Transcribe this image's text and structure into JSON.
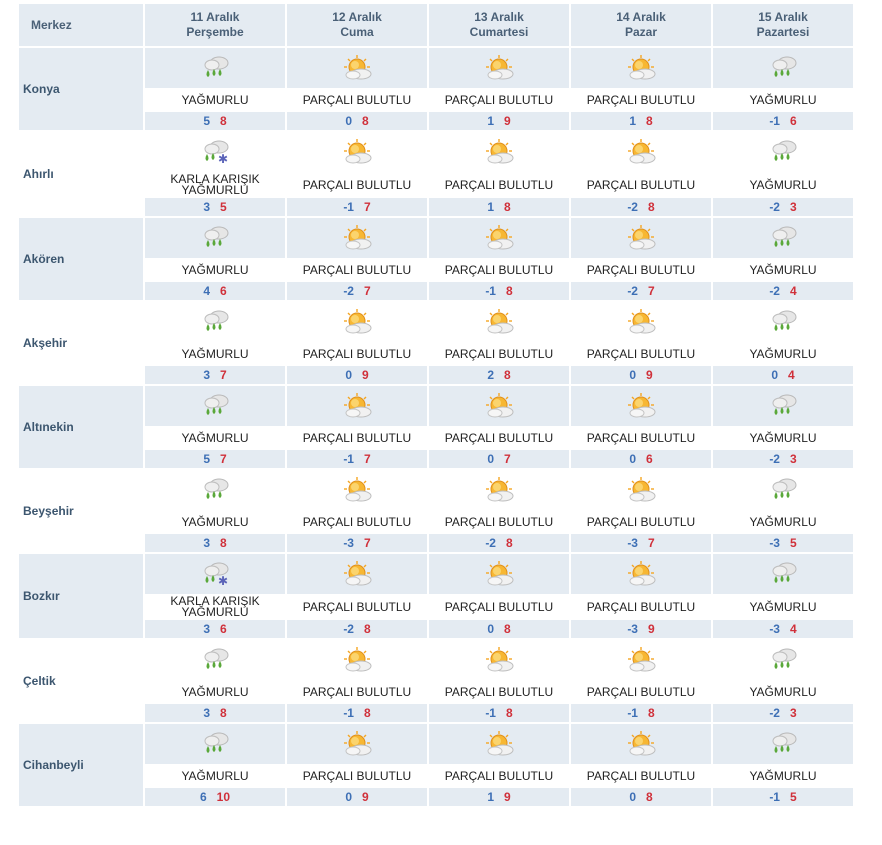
{
  "header": {
    "city_label": "Merkez",
    "days": [
      {
        "date": "11 Aralık",
        "weekday": "Perşembe"
      },
      {
        "date": "12 Aralık",
        "weekday": "Cuma"
      },
      {
        "date": "13 Aralık",
        "weekday": "Cumartesi"
      },
      {
        "date": "14 Aralık",
        "weekday": "Pazar"
      },
      {
        "date": "15 Aralık",
        "weekday": "Pazartesi"
      }
    ]
  },
  "icon_names": {
    "rain": "rain-cloud-icon",
    "partly": "partly-cloudy-sun-icon",
    "sleet": "sleet-cloud-icon"
  },
  "colors": {
    "header_bg": "#e4ebf2",
    "min_temp": "#3d6fb5",
    "max_temp": "#d0303a",
    "rain_drop": "#5aa83a",
    "sun": "#f5a623"
  },
  "cities": [
    {
      "name": "Konya",
      "days": [
        {
          "icon": "rain",
          "cond": "YAĞMURLU",
          "min": "5",
          "max": "8"
        },
        {
          "icon": "partly",
          "cond": "PARÇALI BULUTLU",
          "min": "0",
          "max": "8"
        },
        {
          "icon": "partly",
          "cond": "PARÇALI BULUTLU",
          "min": "1",
          "max": "9"
        },
        {
          "icon": "partly",
          "cond": "PARÇALI BULUTLU",
          "min": "1",
          "max": "8"
        },
        {
          "icon": "rain",
          "cond": "YAĞMURLU",
          "min": "-1",
          "max": "6"
        }
      ]
    },
    {
      "name": "Ahırlı",
      "days": [
        {
          "icon": "sleet",
          "cond": "KARLA KARIŞIK YAĞMURLU",
          "min": "3",
          "max": "5"
        },
        {
          "icon": "partly",
          "cond": "PARÇALI BULUTLU",
          "min": "-1",
          "max": "7"
        },
        {
          "icon": "partly",
          "cond": "PARÇALI BULUTLU",
          "min": "1",
          "max": "8"
        },
        {
          "icon": "partly",
          "cond": "PARÇALI BULUTLU",
          "min": "-2",
          "max": "8"
        },
        {
          "icon": "rain",
          "cond": "YAĞMURLU",
          "min": "-2",
          "max": "3"
        }
      ]
    },
    {
      "name": "Akören",
      "days": [
        {
          "icon": "rain",
          "cond": "YAĞMURLU",
          "min": "4",
          "max": "6"
        },
        {
          "icon": "partly",
          "cond": "PARÇALI BULUTLU",
          "min": "-2",
          "max": "7"
        },
        {
          "icon": "partly",
          "cond": "PARÇALI BULUTLU",
          "min": "-1",
          "max": "8"
        },
        {
          "icon": "partly",
          "cond": "PARÇALI BULUTLU",
          "min": "-2",
          "max": "7"
        },
        {
          "icon": "rain",
          "cond": "YAĞMURLU",
          "min": "-2",
          "max": "4"
        }
      ]
    },
    {
      "name": "Akşehir",
      "days": [
        {
          "icon": "rain",
          "cond": "YAĞMURLU",
          "min": "3",
          "max": "7"
        },
        {
          "icon": "partly",
          "cond": "PARÇALI BULUTLU",
          "min": "0",
          "max": "9"
        },
        {
          "icon": "partly",
          "cond": "PARÇALI BULUTLU",
          "min": "2",
          "max": "8"
        },
        {
          "icon": "partly",
          "cond": "PARÇALI BULUTLU",
          "min": "0",
          "max": "9"
        },
        {
          "icon": "rain",
          "cond": "YAĞMURLU",
          "min": "0",
          "max": "4"
        }
      ]
    },
    {
      "name": "Altınekin",
      "days": [
        {
          "icon": "rain",
          "cond": "YAĞMURLU",
          "min": "5",
          "max": "7"
        },
        {
          "icon": "partly",
          "cond": "PARÇALI BULUTLU",
          "min": "-1",
          "max": "7"
        },
        {
          "icon": "partly",
          "cond": "PARÇALI BULUTLU",
          "min": "0",
          "max": "7"
        },
        {
          "icon": "partly",
          "cond": "PARÇALI BULUTLU",
          "min": "0",
          "max": "6"
        },
        {
          "icon": "rain",
          "cond": "YAĞMURLU",
          "min": "-2",
          "max": "3"
        }
      ]
    },
    {
      "name": "Beyşehir",
      "days": [
        {
          "icon": "rain",
          "cond": "YAĞMURLU",
          "min": "3",
          "max": "8"
        },
        {
          "icon": "partly",
          "cond": "PARÇALI BULUTLU",
          "min": "-3",
          "max": "7"
        },
        {
          "icon": "partly",
          "cond": "PARÇALI BULUTLU",
          "min": "-2",
          "max": "8"
        },
        {
          "icon": "partly",
          "cond": "PARÇALI BULUTLU",
          "min": "-3",
          "max": "7"
        },
        {
          "icon": "rain",
          "cond": "YAĞMURLU",
          "min": "-3",
          "max": "5"
        }
      ]
    },
    {
      "name": "Bozkır",
      "days": [
        {
          "icon": "sleet",
          "cond": "KARLA KARIŞIK YAĞMURLU",
          "min": "3",
          "max": "6"
        },
        {
          "icon": "partly",
          "cond": "PARÇALI BULUTLU",
          "min": "-2",
          "max": "8"
        },
        {
          "icon": "partly",
          "cond": "PARÇALI BULUTLU",
          "min": "0",
          "max": "8"
        },
        {
          "icon": "partly",
          "cond": "PARÇALI BULUTLU",
          "min": "-3",
          "max": "9"
        },
        {
          "icon": "rain",
          "cond": "YAĞMURLU",
          "min": "-3",
          "max": "4"
        }
      ]
    },
    {
      "name": "Çeltik",
      "days": [
        {
          "icon": "rain",
          "cond": "YAĞMURLU",
          "min": "3",
          "max": "8"
        },
        {
          "icon": "partly",
          "cond": "PARÇALI BULUTLU",
          "min": "-1",
          "max": "8"
        },
        {
          "icon": "partly",
          "cond": "PARÇALI BULUTLU",
          "min": "-1",
          "max": "8"
        },
        {
          "icon": "partly",
          "cond": "PARÇALI BULUTLU",
          "min": "-1",
          "max": "8"
        },
        {
          "icon": "rain",
          "cond": "YAĞMURLU",
          "min": "-2",
          "max": "3"
        }
      ]
    },
    {
      "name": "Cihanbeyli",
      "days": [
        {
          "icon": "rain",
          "cond": "YAĞMURLU",
          "min": "6",
          "max": "10"
        },
        {
          "icon": "partly",
          "cond": "PARÇALI BULUTLU",
          "min": "0",
          "max": "9"
        },
        {
          "icon": "partly",
          "cond": "PARÇALI BULUTLU",
          "min": "1",
          "max": "9"
        },
        {
          "icon": "partly",
          "cond": "PARÇALI BULUTLU",
          "min": "0",
          "max": "8"
        },
        {
          "icon": "rain",
          "cond": "YAĞMURLU",
          "min": "-1",
          "max": "5"
        }
      ]
    }
  ]
}
